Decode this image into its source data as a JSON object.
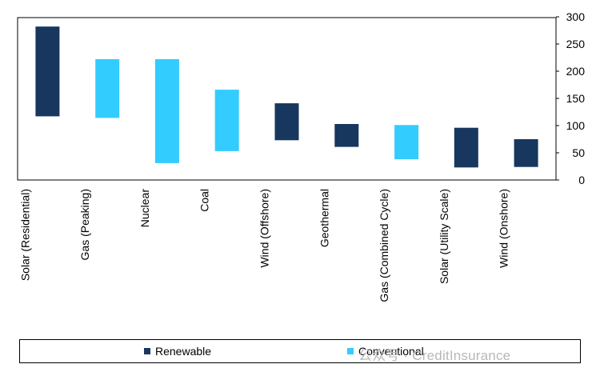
{
  "chart_data": {
    "type": "bar",
    "subtype": "floating-range",
    "categories": [
      "Solar (Residential)",
      "Gas (Peaking)",
      "Nuclear",
      "Coal",
      "Wind (Offshore)",
      "Geothermal",
      "Gas (Combined Cycle)",
      "Solar (Utility Scale)",
      "Wind (Onshore)"
    ],
    "ranges": [
      [
        117,
        282
      ],
      [
        114,
        222
      ],
      [
        31,
        222
      ],
      [
        53,
        166
      ],
      [
        73,
        141
      ],
      [
        61,
        103
      ],
      [
        38,
        101
      ],
      [
        23,
        96
      ],
      [
        24,
        75
      ]
    ],
    "groups": [
      "Renewable",
      "Conventional",
      "Conventional",
      "Conventional",
      "Renewable",
      "Renewable",
      "Conventional",
      "Renewable",
      "Renewable"
    ],
    "ylim": [
      0,
      300
    ],
    "yticks": [
      0,
      50,
      100,
      150,
      200,
      250,
      300
    ],
    "y_axis_position": "right",
    "grid": false,
    "legend_position": "bottom",
    "legend": [
      {
        "name": "Renewable",
        "color": "#17375e"
      },
      {
        "name": "Conventional",
        "color": "#33ccff"
      }
    ]
  },
  "watermark": "公众号 · CreditInsurance"
}
